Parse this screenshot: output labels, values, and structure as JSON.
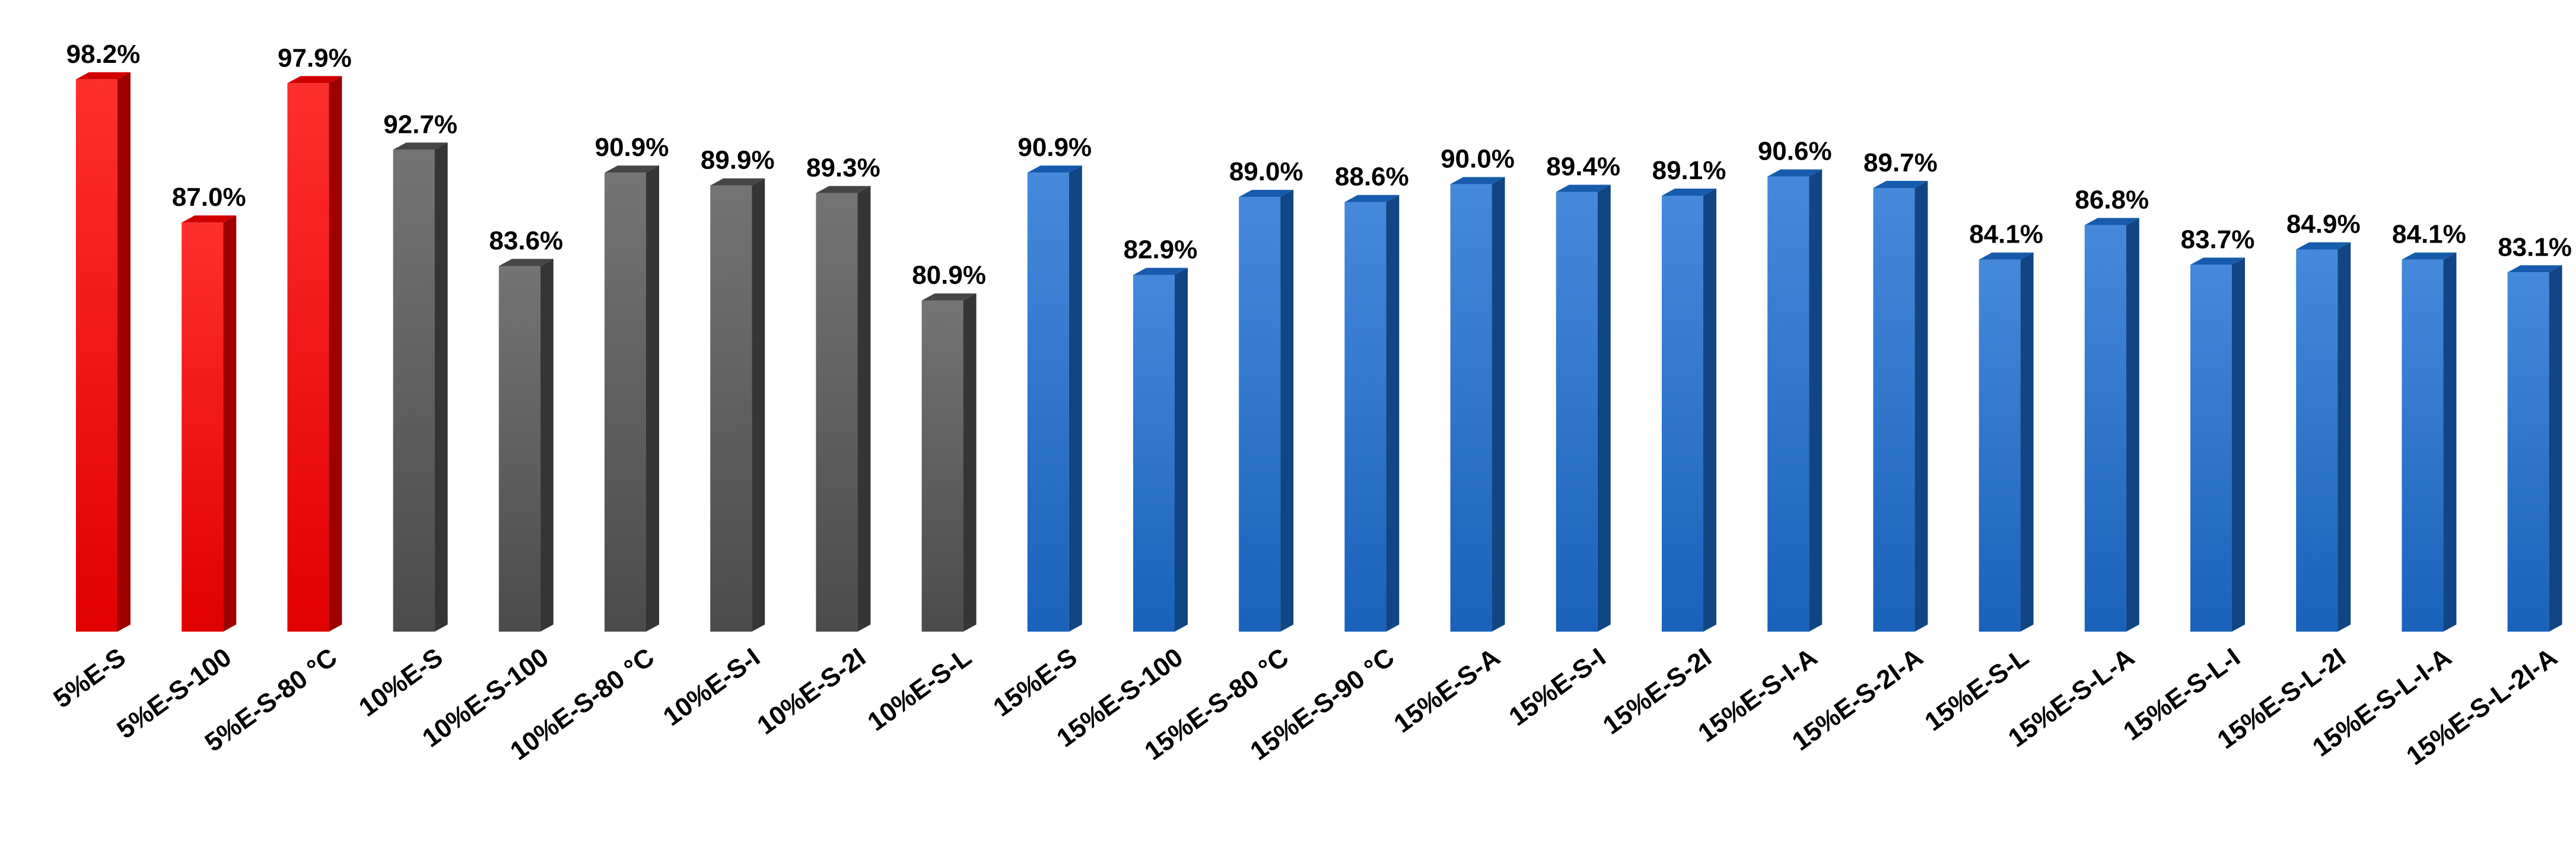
{
  "chart_data": {
    "type": "bar",
    "style": "3d-column",
    "title": "",
    "xlabel": "",
    "ylabel": "",
    "ylim": [
      55,
      100
    ],
    "grid": false,
    "legend": "none",
    "value_suffix": "%",
    "categories": [
      "5%E-S",
      "5%E-S-100",
      "5%E-S-80 °C",
      "10%E-S",
      "10%E-S-100",
      "10%E-S-80 °C",
      "10%E-S-I",
      "10%E-S-2I",
      "10%E-S-L",
      "15%E-S",
      "15%E-S-100",
      "15%E-S-80 °C",
      "15%E-S-90 °C",
      "15%E-S-A",
      "15%E-S-I",
      "15%E-S-2I",
      "15%E-S-I-A",
      "15%E-S-2I-A",
      "15%E-S-L",
      "15%E-S-L-A",
      "15%E-S-L-I",
      "15%E-S-L-2I",
      "15%E-S-L-I-A",
      "15%E-S-L-2I-A"
    ],
    "values": [
      98.2,
      87.0,
      97.9,
      92.7,
      83.6,
      90.9,
      89.9,
      89.3,
      80.9,
      90.9,
      82.9,
      89.0,
      88.6,
      90.0,
      89.4,
      89.1,
      90.6,
      89.7,
      84.1,
      86.8,
      83.7,
      84.9,
      84.1,
      83.1
    ],
    "value_labels": [
      "98.2%",
      "87.0%",
      "97.9%",
      "92.7%",
      "83.6%",
      "90.9%",
      "89.9%",
      "89.3%",
      "80.9%",
      "90.9%",
      "82.9%",
      "89.0%",
      "88.6%",
      "90.0%",
      "89.4%",
      "89.1%",
      "90.6%",
      "89.7%",
      "84.1%",
      "86.8%",
      "83.7%",
      "84.9%",
      "84.1%",
      "83.1%"
    ],
    "groups": [
      {
        "key": "5%",
        "color": "#ff0000",
        "count": 3
      },
      {
        "key": "10%",
        "color": "#555555",
        "count": 6
      },
      {
        "key": "15%",
        "color": "#1c6fd3",
        "count": 15
      }
    ]
  }
}
